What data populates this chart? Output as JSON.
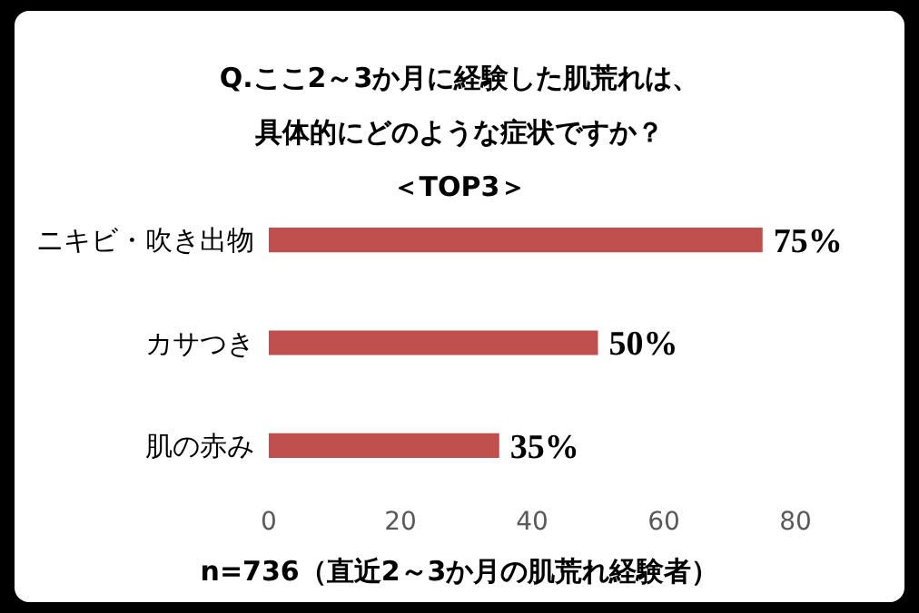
{
  "chart_data": {
    "type": "bar",
    "orientation": "horizontal",
    "title": "Q.ここ2～3か月に経験した肌荒れは、",
    "subtitle": "具体的にどのような症状ですか？",
    "annotations": [
      "＜TOP3＞"
    ],
    "xlabel": "n=736（直近2～3か月の肌荒れ経験者）",
    "categories": [
      "ニキビ・吹き出物",
      "カサつき",
      "肌の赤み"
    ],
    "values": [
      75,
      50,
      35
    ],
    "value_labels": [
      "75%",
      "50%",
      "35%"
    ],
    "color": "#c0504d",
    "xlim": [
      0,
      80
    ],
    "xticks": [
      0,
      20,
      40,
      60,
      80
    ],
    "grid": false,
    "legend": false
  }
}
